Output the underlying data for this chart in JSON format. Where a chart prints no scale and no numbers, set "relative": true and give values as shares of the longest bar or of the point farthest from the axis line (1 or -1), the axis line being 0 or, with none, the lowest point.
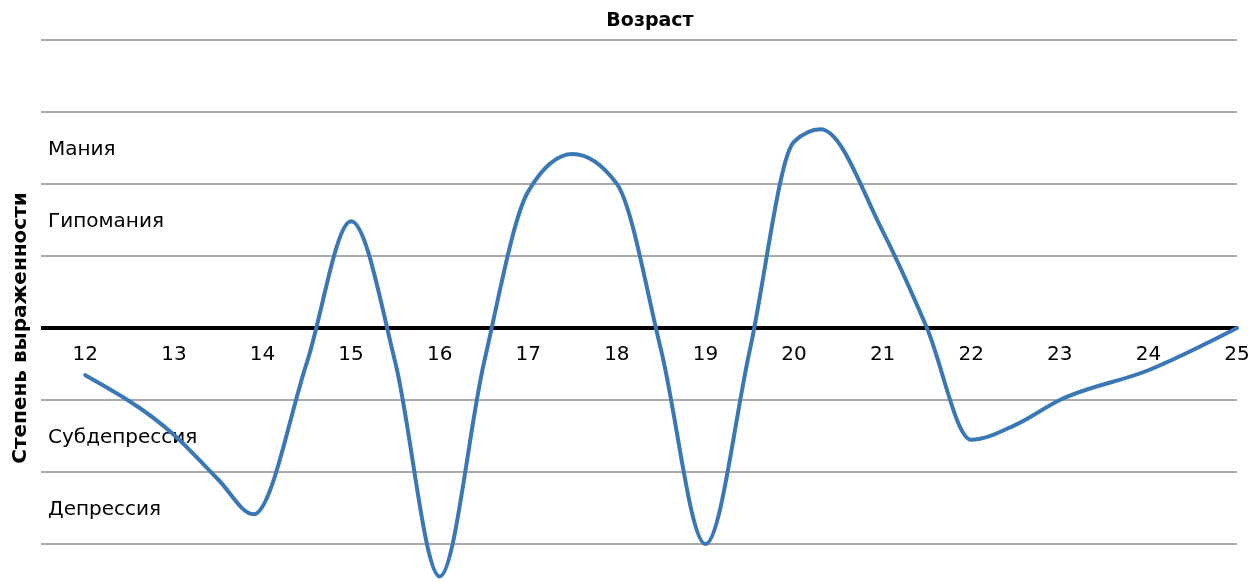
{
  "chart_data": {
    "type": "line",
    "title": "Возраст",
    "ylabel": "Степень выраженности",
    "relative": true,
    "x": [
      12,
      13,
      13.5,
      13.9,
      14.5,
      15,
      15.5,
      16,
      16.5,
      17,
      17.5,
      18,
      18.5,
      19,
      19.5,
      20,
      20.3,
      21,
      21.5,
      22,
      22.5,
      23,
      24,
      25
    ],
    "series": [
      {
        "color": "#3a78b5",
        "values": [
          -0.19,
          -0.43,
          -0.61,
          -0.75,
          -0.14,
          0.43,
          -0.14,
          -1,
          -0.14,
          0.55,
          0.7,
          0.58,
          -0.09,
          -0.87,
          -0.09,
          0.75,
          0.8,
          0.39,
          0,
          -0.45,
          -0.39,
          -0.29,
          -0.17,
          0
        ]
      }
    ],
    "xlim": [
      11.5,
      25
    ],
    "xticks": [
      12,
      13,
      14,
      15,
      16,
      17,
      18,
      19,
      20,
      21,
      22,
      23,
      24,
      25
    ],
    "annotations": [
      "Мания",
      "Гипомания",
      "Субдепрессия",
      "Депрессия"
    ],
    "grid": true,
    "marker": "none",
    "line_style": "solid"
  }
}
